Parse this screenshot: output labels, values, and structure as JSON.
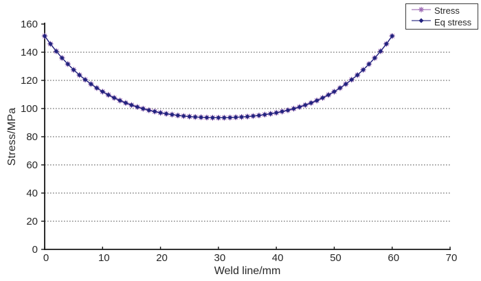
{
  "figure": {
    "background": "#ffffff"
  },
  "chart_data": {
    "type": "line",
    "title": "",
    "xlabel": "Weld line/mm",
    "ylabel": "Stress/MPa",
    "xlim": [
      0,
      70
    ],
    "ylim": [
      0,
      160
    ],
    "xticks": [
      0,
      10,
      20,
      30,
      40,
      50,
      60,
      70
    ],
    "yticks": [
      0,
      20,
      40,
      60,
      80,
      100,
      120,
      140,
      160
    ],
    "grid": "horizontal-dashed",
    "legend_position": "top-right",
    "x": [
      0,
      1,
      2,
      3,
      4,
      5,
      6,
      7,
      8,
      9,
      10,
      11,
      12,
      13,
      14,
      15,
      16,
      17,
      18,
      19,
      20,
      21,
      22,
      23,
      24,
      25,
      26,
      27,
      28,
      29,
      30,
      31,
      32,
      33,
      34,
      35,
      36,
      37,
      38,
      39,
      40,
      41,
      42,
      43,
      44,
      45,
      46,
      47,
      48,
      49,
      50,
      51,
      52,
      53,
      54,
      55,
      56,
      57,
      58,
      59,
      60
    ],
    "series": [
      {
        "name": "Stress",
        "color": "#9e6bb5",
        "marker": "star",
        "values": [
          151.5,
          145.9,
          140.7,
          135.9,
          131.6,
          127.5,
          123.8,
          120.5,
          117.4,
          114.6,
          112.0,
          109.7,
          107.6,
          105.7,
          104.0,
          102.5,
          101.1,
          99.9,
          98.8,
          97.9,
          97.0,
          96.3,
          95.7,
          95.1,
          94.7,
          94.3,
          94.0,
          93.8,
          93.6,
          93.5,
          93.5,
          93.5,
          93.6,
          93.8,
          94.0,
          94.3,
          94.7,
          95.1,
          95.7,
          96.3,
          97.0,
          97.9,
          98.8,
          99.9,
          101.1,
          102.5,
          104.0,
          105.7,
          107.6,
          109.7,
          112.0,
          114.6,
          117.4,
          120.5,
          123.8,
          127.5,
          131.6,
          135.9,
          140.7,
          145.9,
          151.5
        ]
      },
      {
        "name": "Eq stress",
        "color": "#23237f",
        "marker": "diamond",
        "values": [
          151.5,
          145.9,
          140.7,
          135.9,
          131.6,
          127.5,
          123.8,
          120.5,
          117.4,
          114.6,
          112.0,
          109.7,
          107.6,
          105.7,
          104.0,
          102.5,
          101.1,
          99.9,
          98.8,
          97.9,
          97.0,
          96.3,
          95.7,
          95.1,
          94.7,
          94.3,
          94.0,
          93.8,
          93.6,
          93.5,
          93.5,
          93.5,
          93.6,
          93.8,
          94.0,
          94.3,
          94.7,
          95.1,
          95.7,
          96.3,
          97.0,
          97.9,
          98.8,
          99.9,
          101.1,
          102.5,
          104.0,
          105.7,
          107.6,
          109.7,
          112.0,
          114.6,
          117.4,
          120.5,
          123.8,
          127.5,
          131.6,
          135.9,
          140.7,
          145.9,
          151.5
        ]
      }
    ]
  },
  "legend": {
    "items": [
      {
        "label": "Stress"
      },
      {
        "label": "Eq stress"
      }
    ]
  },
  "colors": {
    "axis": "#141414",
    "grid": "#4a4a4a",
    "tick_text": "#262626",
    "legend_border": "#3a3a3a",
    "background": "#ffffff"
  }
}
